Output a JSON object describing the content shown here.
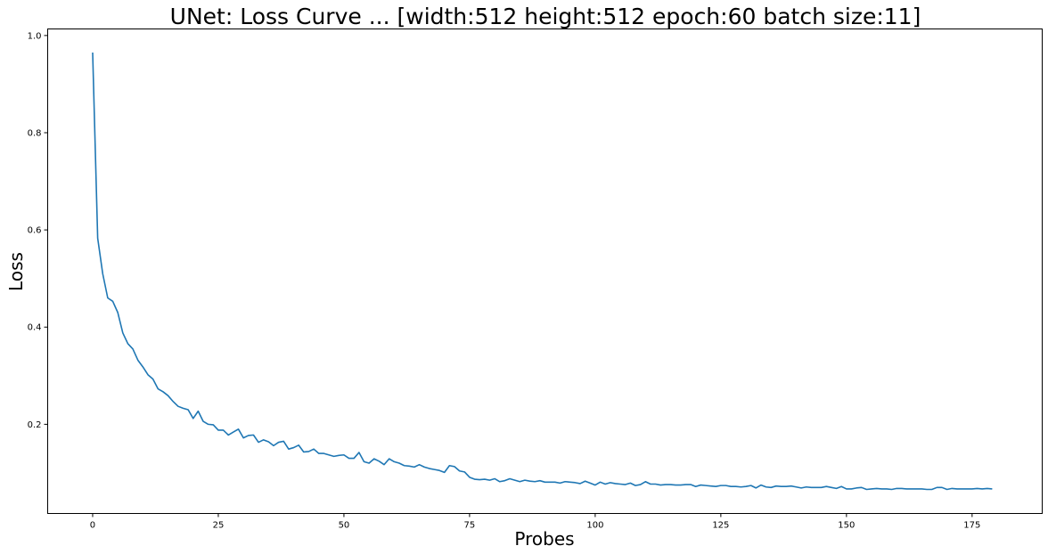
{
  "chart_data": {
    "type": "line",
    "title": "UNet: Loss Curve ... [width:512  height:512  epoch:60  batch size:11]",
    "xlabel": "Probes",
    "ylabel": "Loss",
    "xlim": [
      -8.95,
      188.95
    ],
    "ylim": [
      0.0165,
      1.0135
    ],
    "x_ticks": [
      0,
      25,
      50,
      75,
      100,
      125,
      150,
      175
    ],
    "y_ticks": [
      0.2,
      0.4,
      0.6,
      0.8,
      1.0
    ],
    "grid": false,
    "legend": "none",
    "series": [
      {
        "color": "#1f77b4",
        "x_start": 0,
        "x_step": 1,
        "values": [
          0.965,
          0.583,
          0.51,
          0.46,
          0.453,
          0.43,
          0.388,
          0.366,
          0.355,
          0.332,
          0.318,
          0.302,
          0.293,
          0.273,
          0.267,
          0.259,
          0.247,
          0.237,
          0.233,
          0.23,
          0.212,
          0.227,
          0.206,
          0.2,
          0.199,
          0.188,
          0.188,
          0.178,
          0.184,
          0.19,
          0.172,
          0.177,
          0.178,
          0.163,
          0.168,
          0.164,
          0.156,
          0.163,
          0.165,
          0.149,
          0.152,
          0.157,
          0.143,
          0.144,
          0.149,
          0.14,
          0.14,
          0.137,
          0.134,
          0.136,
          0.137,
          0.13,
          0.13,
          0.142,
          0.123,
          0.12,
          0.129,
          0.124,
          0.117,
          0.129,
          0.123,
          0.12,
          0.115,
          0.114,
          0.112,
          0.117,
          0.112,
          0.109,
          0.107,
          0.105,
          0.101,
          0.115,
          0.113,
          0.104,
          0.102,
          0.091,
          0.087,
          0.086,
          0.087,
          0.085,
          0.088,
          0.082,
          0.084,
          0.088,
          0.085,
          0.082,
          0.085,
          0.083,
          0.082,
          0.084,
          0.081,
          0.081,
          0.081,
          0.079,
          0.082,
          0.081,
          0.08,
          0.078,
          0.083,
          0.079,
          0.075,
          0.081,
          0.077,
          0.08,
          0.078,
          0.077,
          0.076,
          0.079,
          0.074,
          0.076,
          0.082,
          0.077,
          0.077,
          0.075,
          0.076,
          0.076,
          0.075,
          0.075,
          0.076,
          0.076,
          0.072,
          0.075,
          0.074,
          0.073,
          0.072,
          0.074,
          0.074,
          0.072,
          0.072,
          0.071,
          0.072,
          0.074,
          0.069,
          0.075,
          0.071,
          0.07,
          0.073,
          0.072,
          0.072,
          0.073,
          0.071,
          0.069,
          0.071,
          0.07,
          0.07,
          0.07,
          0.072,
          0.07,
          0.068,
          0.072,
          0.067,
          0.067,
          0.069,
          0.07,
          0.066,
          0.067,
          0.068,
          0.067,
          0.067,
          0.066,
          0.068,
          0.068,
          0.067,
          0.067,
          0.067,
          0.067,
          0.066,
          0.066,
          0.07,
          0.07,
          0.066,
          0.068,
          0.067,
          0.067,
          0.067,
          0.067,
          0.068,
          0.067,
          0.068,
          0.067
        ]
      }
    ]
  }
}
